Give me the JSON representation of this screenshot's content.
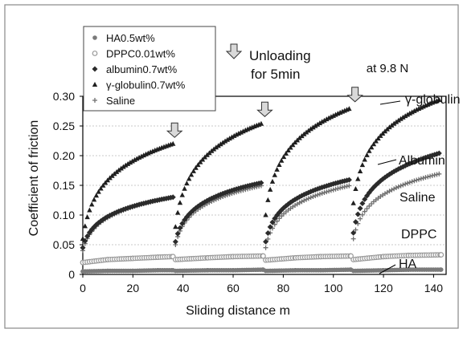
{
  "chart_data": {
    "type": "scatter",
    "title": "",
    "xlabel": "Sliding distance  m",
    "ylabel": "Coefficient of friction",
    "xlim": [
      0,
      145
    ],
    "ylim": [
      0,
      0.3
    ],
    "x_ticks": [
      "0",
      "20",
      "40",
      "60",
      "80",
      "100",
      "120",
      "140"
    ],
    "y_ticks": [
      "0",
      "0.05",
      "0.10",
      "0.15",
      "0.20",
      "0.25",
      "0.30"
    ],
    "grid": true,
    "legend_position": "top-left",
    "condition": "at 9.8 N",
    "unloading_note": "Unloading for 5min",
    "unloading_note_line1": "Unloading",
    "unloading_note_line2": "for 5min",
    "unloading_at_x": [
      36,
      72,
      108
    ],
    "series": [
      {
        "name": "HA0.5wt%",
        "curve_label": "HA",
        "marker": "circle-filled",
        "color": "#7a7a7a",
        "segments": [
          {
            "x": [
              0,
              10,
              20,
              30,
              36
            ],
            "y": [
              0.005,
              0.006,
              0.006,
              0.007,
              0.007
            ]
          },
          {
            "x": [
              37,
              50,
              60,
              72
            ],
            "y": [
              0.006,
              0.007,
              0.007,
              0.008
            ]
          },
          {
            "x": [
              73,
              85,
              95,
              107
            ],
            "y": [
              0.006,
              0.007,
              0.007,
              0.008
            ]
          },
          {
            "x": [
              108,
              120,
              130,
              143
            ],
            "y": [
              0.006,
              0.007,
              0.008,
              0.008
            ]
          }
        ]
      },
      {
        "name": "DPPC0.01wt%",
        "curve_label": "DPPC",
        "marker": "circle-open",
        "color": "#9a9a9a",
        "segments": [
          {
            "x": [
              0,
              10,
              20,
              30,
              36
            ],
            "y": [
              0.02,
              0.025,
              0.027,
              0.029,
              0.03
            ]
          },
          {
            "x": [
              37,
              50,
              60,
              72
            ],
            "y": [
              0.025,
              0.028,
              0.03,
              0.031
            ]
          },
          {
            "x": [
              73,
              85,
              95,
              107
            ],
            "y": [
              0.024,
              0.028,
              0.03,
              0.031
            ]
          },
          {
            "x": [
              108,
              120,
              130,
              143
            ],
            "y": [
              0.025,
              0.03,
              0.032,
              0.033
            ]
          }
        ]
      },
      {
        "name": "albumin0.7wt%",
        "curve_label": "Albumin",
        "marker": "diamond",
        "color": "#2b2b2b",
        "segments": [
          {
            "x": [
              0,
              36
            ],
            "y": [
              0.045,
              0.13
            ],
            "shape": "log"
          },
          {
            "x": [
              37,
              72
            ],
            "y": [
              0.055,
              0.155
            ],
            "shape": "log"
          },
          {
            "x": [
              73,
              107
            ],
            "y": [
              0.055,
              0.16
            ],
            "shape": "log"
          },
          {
            "x": [
              108,
              143
            ],
            "y": [
              0.07,
              0.205
            ],
            "shape": "log"
          }
        ]
      },
      {
        "name": "γ-globulin0.7wt%",
        "curve_label": "γ-globulin",
        "marker": "triangle",
        "color": "#1f1f1f",
        "segments": [
          {
            "x": [
              0,
              36
            ],
            "y": [
              0.06,
              0.22
            ],
            "shape": "log"
          },
          {
            "x": [
              37,
              72
            ],
            "y": [
              0.08,
              0.255
            ],
            "shape": "log"
          },
          {
            "x": [
              73,
              107
            ],
            "y": [
              0.1,
              0.28
            ],
            "shape": "log"
          },
          {
            "x": [
              108,
              143
            ],
            "y": [
              0.12,
              0.295
            ],
            "shape": "log"
          }
        ]
      },
      {
        "name": "Saline",
        "curve_label": "Saline",
        "marker": "plus",
        "color": "#6f6f6f",
        "segments": [
          {
            "x": [
              0,
              36
            ],
            "y": [
              0.04,
              0.13
            ],
            "shape": "log"
          },
          {
            "x": [
              37,
              72
            ],
            "y": [
              0.05,
              0.15
            ],
            "shape": "log"
          },
          {
            "x": [
              73,
              107
            ],
            "y": [
              0.045,
              0.15
            ],
            "shape": "log"
          },
          {
            "x": [
              108,
              143
            ],
            "y": [
              0.06,
              0.17
            ],
            "shape": "log"
          }
        ]
      }
    ]
  }
}
